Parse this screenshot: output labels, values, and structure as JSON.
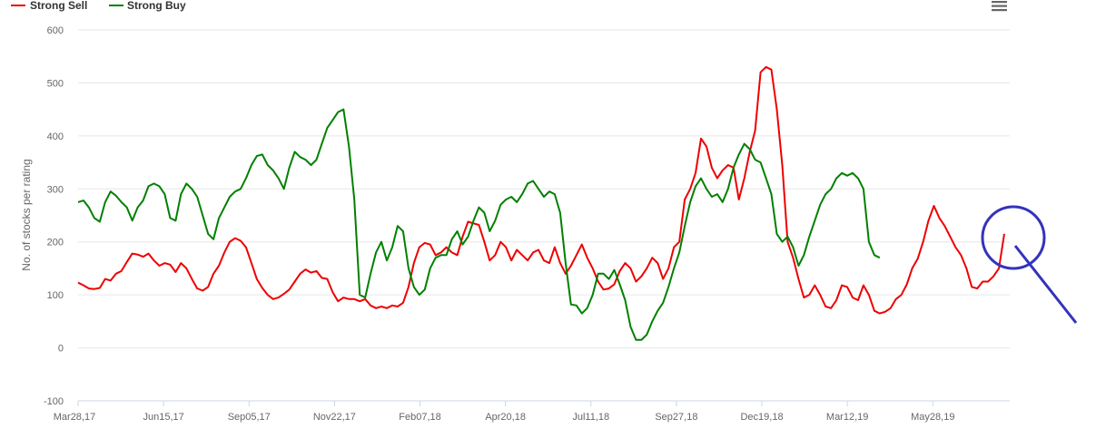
{
  "chart_data": {
    "type": "line",
    "title": "",
    "xlabel": "",
    "ylabel": "No. of stocks per rating",
    "ylim": [
      -100,
      600
    ],
    "y_ticks": [
      600,
      500,
      400,
      300,
      200,
      100,
      0,
      -100
    ],
    "x_tick_labels": [
      "Mar28,17",
      "Jun15,17",
      "Sep05,17",
      "Nov22,17",
      "Feb07,18",
      "Apr20,18",
      "Jul11,18",
      "Sep27,18",
      "Dec19,18",
      "Mar12,19",
      "May28,19"
    ],
    "grid": true,
    "legend_position": "top-left",
    "series": [
      {
        "name": "Strong Sell",
        "color": "#ee0000",
        "points": [
          [
            0,
            123
          ],
          [
            3,
            118
          ],
          [
            6,
            112
          ],
          [
            9,
            111
          ],
          [
            12,
            113
          ],
          [
            15,
            130
          ],
          [
            18,
            127
          ],
          [
            21,
            140
          ],
          [
            24,
            145
          ],
          [
            27,
            162
          ],
          [
            30,
            178
          ],
          [
            33,
            176
          ],
          [
            36,
            172
          ],
          [
            39,
            178
          ],
          [
            42,
            165
          ],
          [
            45,
            155
          ],
          [
            48,
            160
          ],
          [
            51,
            157
          ],
          [
            54,
            143
          ],
          [
            57,
            160
          ],
          [
            60,
            150
          ],
          [
            63,
            130
          ],
          [
            66,
            112
          ],
          [
            69,
            108
          ],
          [
            72,
            115
          ],
          [
            75,
            140
          ],
          [
            78,
            155
          ],
          [
            81,
            180
          ],
          [
            84,
            200
          ],
          [
            87,
            207
          ],
          [
            90,
            202
          ],
          [
            93,
            190
          ],
          [
            96,
            160
          ],
          [
            99,
            130
          ],
          [
            102,
            113
          ],
          [
            105,
            100
          ],
          [
            108,
            92
          ],
          [
            111,
            95
          ],
          [
            114,
            102
          ],
          [
            117,
            110
          ],
          [
            120,
            125
          ],
          [
            123,
            140
          ],
          [
            126,
            148
          ],
          [
            129,
            142
          ],
          [
            132,
            145
          ],
          [
            135,
            132
          ],
          [
            138,
            130
          ],
          [
            141,
            105
          ],
          [
            144,
            88
          ],
          [
            147,
            95
          ],
          [
            150,
            92
          ],
          [
            153,
            92
          ],
          [
            156,
            88
          ],
          [
            159,
            92
          ],
          [
            162,
            80
          ],
          [
            165,
            75
          ],
          [
            168,
            78
          ],
          [
            171,
            75
          ],
          [
            174,
            80
          ],
          [
            177,
            78
          ],
          [
            180,
            85
          ],
          [
            183,
            115
          ],
          [
            186,
            160
          ],
          [
            189,
            190
          ],
          [
            192,
            198
          ],
          [
            195,
            195
          ],
          [
            198,
            175
          ],
          [
            201,
            180
          ],
          [
            204,
            190
          ],
          [
            207,
            180
          ],
          [
            210,
            175
          ],
          [
            213,
            210
          ],
          [
            216,
            238
          ],
          [
            219,
            235
          ],
          [
            222,
            232
          ],
          [
            225,
            200
          ],
          [
            228,
            165
          ],
          [
            231,
            175
          ],
          [
            234,
            200
          ],
          [
            237,
            190
          ],
          [
            240,
            165
          ],
          [
            243,
            185
          ],
          [
            246,
            175
          ],
          [
            249,
            165
          ],
          [
            252,
            180
          ],
          [
            255,
            185
          ],
          [
            258,
            165
          ],
          [
            261,
            160
          ],
          [
            264,
            190
          ],
          [
            267,
            160
          ],
          [
            270,
            140
          ],
          [
            273,
            155
          ],
          [
            276,
            175
          ],
          [
            279,
            195
          ],
          [
            282,
            170
          ],
          [
            285,
            150
          ],
          [
            288,
            125
          ],
          [
            291,
            110
          ],
          [
            294,
            112
          ],
          [
            297,
            120
          ],
          [
            300,
            145
          ],
          [
            303,
            160
          ],
          [
            306,
            150
          ],
          [
            309,
            125
          ],
          [
            312,
            135
          ],
          [
            315,
            150
          ],
          [
            318,
            170
          ],
          [
            321,
            160
          ],
          [
            324,
            130
          ],
          [
            327,
            150
          ],
          [
            330,
            190
          ],
          [
            333,
            200
          ],
          [
            336,
            280
          ],
          [
            339,
            300
          ],
          [
            342,
            330
          ],
          [
            345,
            395
          ],
          [
            348,
            380
          ],
          [
            351,
            340
          ],
          [
            354,
            320
          ],
          [
            357,
            335
          ],
          [
            360,
            345
          ],
          [
            363,
            340
          ],
          [
            366,
            280
          ],
          [
            369,
            320
          ],
          [
            372,
            370
          ],
          [
            375,
            410
          ],
          [
            378,
            520
          ],
          [
            381,
            530
          ],
          [
            384,
            525
          ],
          [
            387,
            450
          ],
          [
            390,
            345
          ],
          [
            393,
            200
          ],
          [
            396,
            170
          ],
          [
            399,
            130
          ],
          [
            402,
            95
          ],
          [
            405,
            100
          ],
          [
            408,
            118
          ],
          [
            411,
            100
          ],
          [
            414,
            78
          ],
          [
            417,
            75
          ],
          [
            420,
            90
          ],
          [
            423,
            118
          ],
          [
            426,
            115
          ],
          [
            429,
            95
          ],
          [
            432,
            90
          ],
          [
            435,
            118
          ],
          [
            438,
            100
          ],
          [
            441,
            70
          ],
          [
            444,
            65
          ],
          [
            447,
            68
          ],
          [
            450,
            75
          ],
          [
            453,
            92
          ],
          [
            456,
            100
          ],
          [
            459,
            120
          ],
          [
            462,
            150
          ],
          [
            465,
            168
          ],
          [
            468,
            200
          ],
          [
            471,
            240
          ],
          [
            474,
            268
          ],
          [
            477,
            245
          ],
          [
            480,
            230
          ],
          [
            483,
            210
          ],
          [
            486,
            190
          ],
          [
            489,
            175
          ],
          [
            492,
            150
          ],
          [
            495,
            115
          ],
          [
            498,
            112
          ],
          [
            501,
            125
          ],
          [
            504,
            125
          ],
          [
            507,
            135
          ],
          [
            510,
            150
          ],
          [
            513,
            215
          ]
        ]
      },
      {
        "name": "Strong Buy",
        "color": "#008000",
        "points": [
          [
            0,
            275
          ],
          [
            3,
            278
          ],
          [
            6,
            265
          ],
          [
            9,
            245
          ],
          [
            12,
            238
          ],
          [
            15,
            275
          ],
          [
            18,
            295
          ],
          [
            21,
            287
          ],
          [
            24,
            275
          ],
          [
            27,
            265
          ],
          [
            30,
            240
          ],
          [
            33,
            265
          ],
          [
            36,
            278
          ],
          [
            39,
            305
          ],
          [
            42,
            310
          ],
          [
            45,
            305
          ],
          [
            48,
            290
          ],
          [
            51,
            245
          ],
          [
            54,
            240
          ],
          [
            57,
            290
          ],
          [
            60,
            310
          ],
          [
            63,
            300
          ],
          [
            66,
            285
          ],
          [
            69,
            250
          ],
          [
            72,
            215
          ],
          [
            75,
            205
          ],
          [
            78,
            245
          ],
          [
            81,
            265
          ],
          [
            84,
            285
          ],
          [
            87,
            295
          ],
          [
            90,
            300
          ],
          [
            93,
            320
          ],
          [
            96,
            345
          ],
          [
            99,
            362
          ],
          [
            102,
            365
          ],
          [
            105,
            345
          ],
          [
            108,
            335
          ],
          [
            111,
            320
          ],
          [
            114,
            300
          ],
          [
            117,
            340
          ],
          [
            120,
            370
          ],
          [
            123,
            360
          ],
          [
            126,
            355
          ],
          [
            129,
            345
          ],
          [
            132,
            355
          ],
          [
            135,
            385
          ],
          [
            138,
            415
          ],
          [
            141,
            430
          ],
          [
            144,
            445
          ],
          [
            147,
            450
          ],
          [
            150,
            380
          ],
          [
            153,
            280
          ],
          [
            156,
            100
          ],
          [
            159,
            95
          ],
          [
            162,
            140
          ],
          [
            165,
            180
          ],
          [
            168,
            200
          ],
          [
            171,
            165
          ],
          [
            174,
            190
          ],
          [
            177,
            230
          ],
          [
            180,
            220
          ],
          [
            183,
            150
          ],
          [
            186,
            115
          ],
          [
            189,
            100
          ],
          [
            192,
            110
          ],
          [
            195,
            150
          ],
          [
            198,
            170
          ],
          [
            201,
            175
          ],
          [
            204,
            175
          ],
          [
            207,
            205
          ],
          [
            210,
            220
          ],
          [
            213,
            195
          ],
          [
            216,
            210
          ],
          [
            219,
            240
          ],
          [
            222,
            265
          ],
          [
            225,
            255
          ],
          [
            228,
            220
          ],
          [
            231,
            240
          ],
          [
            234,
            270
          ],
          [
            237,
            280
          ],
          [
            240,
            285
          ],
          [
            243,
            275
          ],
          [
            246,
            290
          ],
          [
            249,
            310
          ],
          [
            252,
            315
          ],
          [
            255,
            300
          ],
          [
            258,
            285
          ],
          [
            261,
            295
          ],
          [
            264,
            290
          ],
          [
            267,
            255
          ],
          [
            270,
            160
          ],
          [
            273,
            82
          ],
          [
            276,
            80
          ],
          [
            279,
            65
          ],
          [
            282,
            75
          ],
          [
            285,
            100
          ],
          [
            288,
            140
          ],
          [
            291,
            140
          ],
          [
            294,
            130
          ],
          [
            297,
            147
          ],
          [
            300,
            120
          ],
          [
            303,
            90
          ],
          [
            306,
            40
          ],
          [
            309,
            15
          ],
          [
            312,
            15
          ],
          [
            315,
            25
          ],
          [
            318,
            50
          ],
          [
            321,
            70
          ],
          [
            324,
            85
          ],
          [
            327,
            115
          ],
          [
            330,
            150
          ],
          [
            333,
            180
          ],
          [
            336,
            230
          ],
          [
            339,
            275
          ],
          [
            342,
            305
          ],
          [
            345,
            320
          ],
          [
            348,
            300
          ],
          [
            351,
            285
          ],
          [
            354,
            290
          ],
          [
            357,
            275
          ],
          [
            360,
            300
          ],
          [
            363,
            340
          ],
          [
            366,
            365
          ],
          [
            369,
            385
          ],
          [
            372,
            375
          ],
          [
            375,
            355
          ],
          [
            378,
            350
          ],
          [
            381,
            320
          ],
          [
            384,
            290
          ],
          [
            387,
            215
          ],
          [
            390,
            200
          ],
          [
            393,
            210
          ],
          [
            396,
            190
          ],
          [
            399,
            155
          ],
          [
            402,
            175
          ],
          [
            405,
            210
          ],
          [
            408,
            240
          ],
          [
            411,
            270
          ],
          [
            414,
            290
          ],
          [
            417,
            300
          ],
          [
            420,
            320
          ],
          [
            423,
            330
          ],
          [
            426,
            325
          ],
          [
            429,
            330
          ],
          [
            432,
            320
          ],
          [
            435,
            300
          ],
          [
            438,
            200
          ],
          [
            441,
            175
          ],
          [
            444,
            170
          ]
        ]
      }
    ]
  },
  "menu": {
    "icon": "hamburger-menu-icon"
  },
  "annotation": {
    "shape": "magnifier-circle",
    "color": "#3333bb"
  }
}
